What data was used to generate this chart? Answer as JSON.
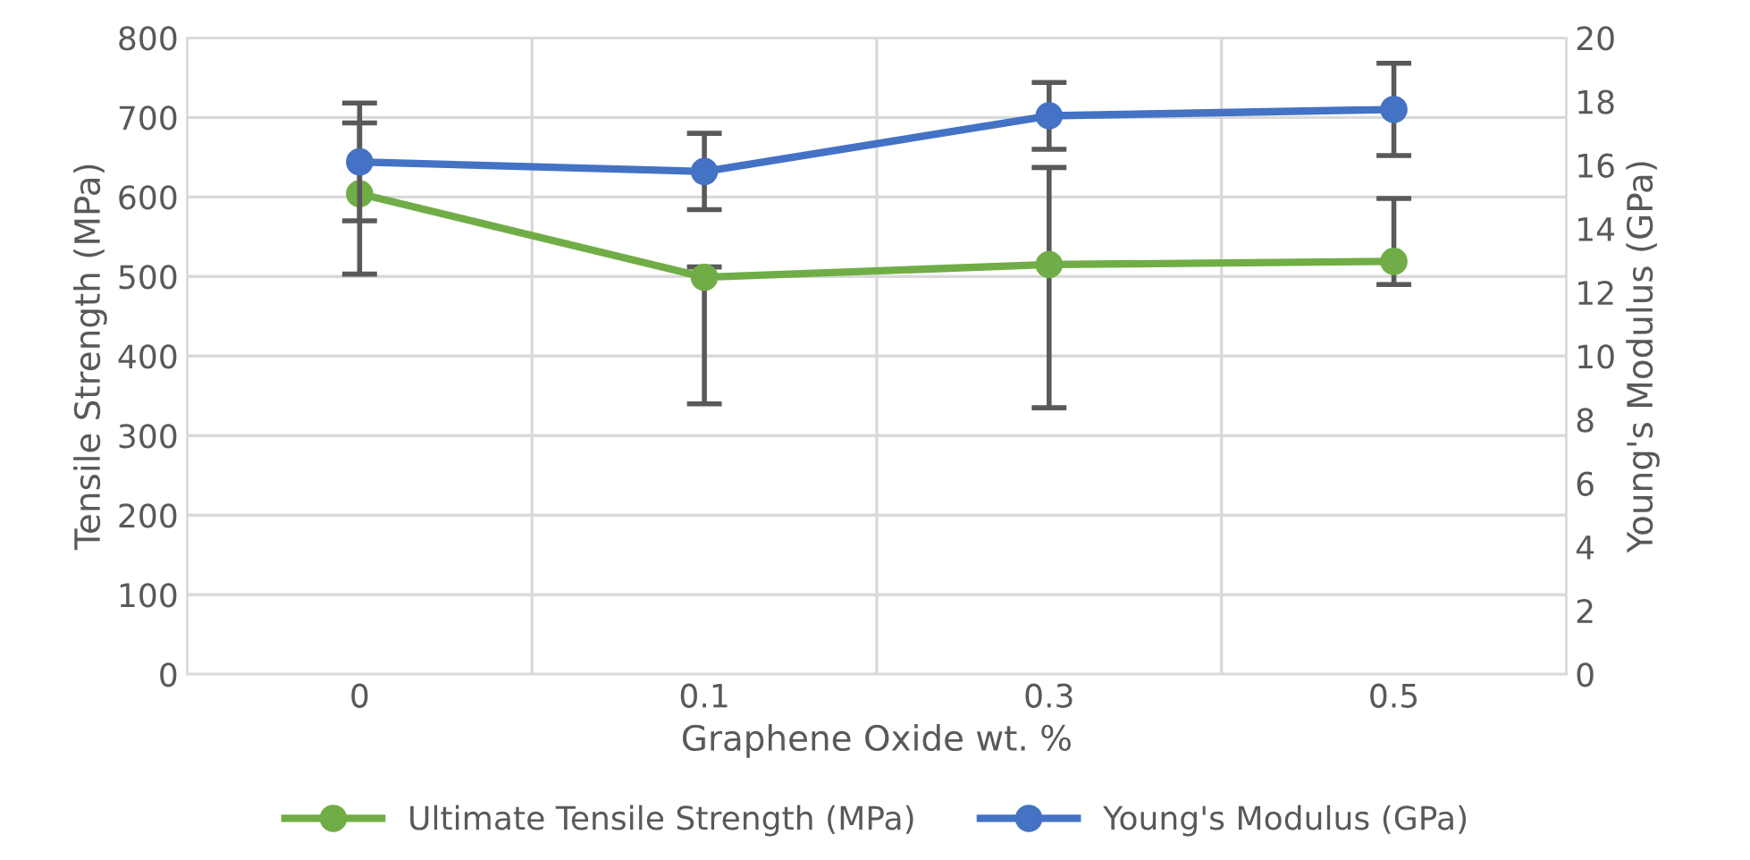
{
  "chart_data": {
    "type": "line",
    "xlabel": "Graphene Oxide wt. %",
    "ylabel": "Tensile Strength (MPa)",
    "y2label": "Young's Modulus (GPa)",
    "categories": [
      "0",
      "0.1",
      "0.3",
      "0.5"
    ],
    "series": [
      {
        "name": "Ultimate Tensile Strength (MPa)",
        "color": "#70ad47",
        "values": [
          604,
          499,
          515,
          519
        ],
        "errors": [
          [
            503,
            693
          ],
          [
            340,
            512
          ],
          [
            335,
            637
          ],
          [
            490,
            598
          ]
        ]
      },
      {
        "name": "Young's Modulus (GPa)",
        "color": "#4472c4",
        "axis": "y2",
        "values": [
          16.1,
          15.8,
          17.55,
          17.75
        ],
        "errors": [
          1.85,
          1.2,
          1.05,
          1.45
        ]
      }
    ],
    "ylim": [
      0,
      800
    ],
    "yticks": [
      0,
      100,
      200,
      300,
      400,
      500,
      600,
      700,
      800
    ],
    "y2lim": [
      0,
      20
    ],
    "y2ticks": [
      0,
      2,
      4,
      6,
      8,
      10,
      12,
      14,
      16,
      18,
      20
    ],
    "grid": true,
    "legend": "bottom",
    "marker": "circle",
    "line_style": "solid"
  }
}
